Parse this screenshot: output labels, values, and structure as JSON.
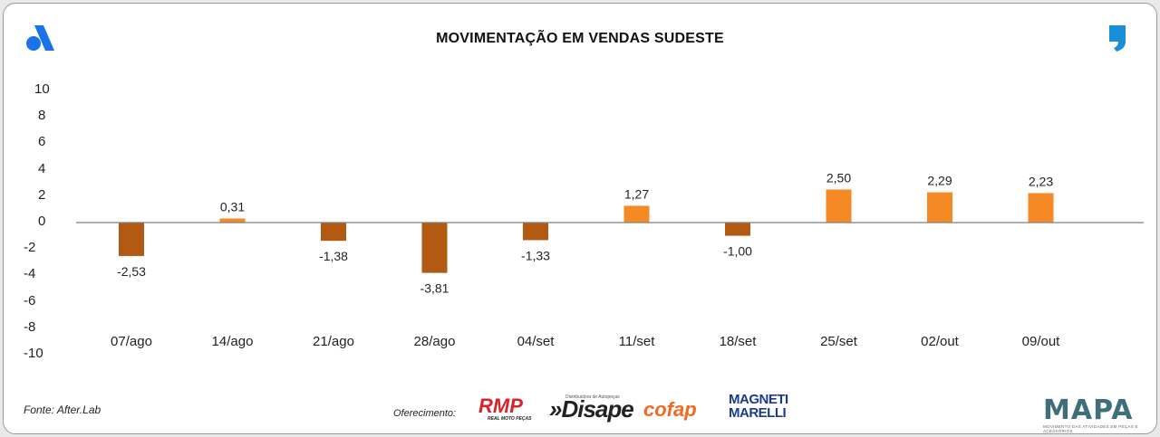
{
  "header": {
    "title": "MOVIMENTAÇÃO EM VENDAS SUDESTE"
  },
  "icons": {
    "left_logo": "a-logo-icon",
    "right_logo": "comma-logo-icon"
  },
  "chart_data": {
    "type": "bar",
    "title": "MOVIMENTAÇÃO EM VENDAS SUDESTE",
    "xlabel": "",
    "ylabel": "",
    "categories": [
      "07/ago",
      "14/ago",
      "21/ago",
      "28/ago",
      "04/set",
      "11/set",
      "18/set",
      "25/set",
      "02/out",
      "09/out"
    ],
    "values": [
      -2.53,
      0.31,
      -1.38,
      -3.81,
      -1.33,
      1.27,
      -1.0,
      2.5,
      2.29,
      2.23
    ],
    "value_labels": [
      "-2,53",
      "0,31",
      "-1,38",
      "-3,81",
      "-1,33",
      "1,27",
      "-1,00",
      "2,50",
      "2,29",
      "2,23"
    ],
    "ylim": [
      -10,
      10
    ],
    "yticks": [
      "10",
      "8",
      "6",
      "4",
      "2",
      "0",
      "-2",
      "-4",
      "-6",
      "-8",
      "-10"
    ],
    "grid": false,
    "colors": {
      "negative": "#b35a12",
      "positive": "#f58a25",
      "axis": "#7f7f7f"
    }
  },
  "footer": {
    "source": "Fonte: After.Lab",
    "offer_label": "Oferecimento:",
    "sponsors": {
      "rmp": "RMP",
      "rmp_sub": "REAL MOTO PEÇAS",
      "disape_sub": "Distribuidora de Autopeças",
      "disape": "»Disape",
      "cofap": "cofap",
      "magneti_line1": "MAGNETI",
      "magneti_line2": "MARELLI"
    },
    "mapa": "MAPA",
    "mapa_sub": "MOVIMENTO DAS ATIVIDADES EM PEÇAS E ACESSÓRIOS"
  }
}
